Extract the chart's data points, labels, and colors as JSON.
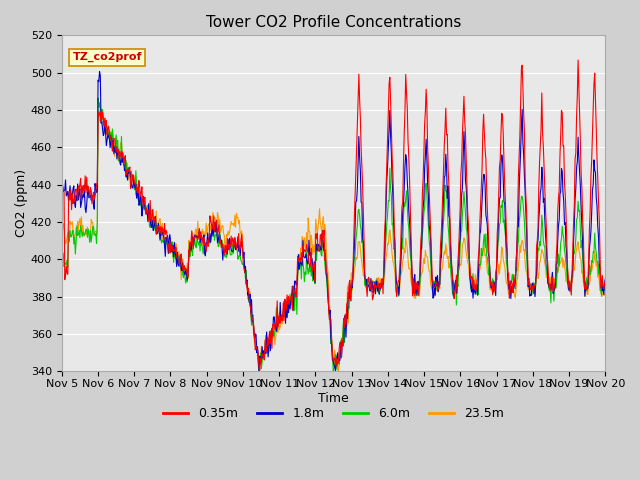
{
  "title": "Tower CO2 Profile Concentrations",
  "xlabel": "Time",
  "ylabel": "CO2 (ppm)",
  "ylim": [
    340,
    520
  ],
  "yticks": [
    340,
    360,
    380,
    400,
    420,
    440,
    460,
    480,
    500,
    520
  ],
  "xlim_days": [
    5,
    20
  ],
  "xtick_labels": [
    "Nov 5",
    "Nov 6",
    "Nov 7",
    "Nov 8",
    "Nov 9",
    "Nov 10",
    "Nov 11",
    "Nov 12",
    "Nov 13",
    "Nov 14",
    "Nov 15",
    "Nov 16",
    "Nov 17",
    "Nov 18",
    "Nov 19",
    "Nov 20"
  ],
  "series_colors": [
    "#ff0000",
    "#0000cc",
    "#00cc00",
    "#ff9900"
  ],
  "series_labels": [
    "0.35m",
    "1.8m",
    "6.0m",
    "23.5m"
  ],
  "legend_label": "TZ_co2prof",
  "fig_bg_color": "#d0d0d0",
  "plot_bg_color": "#e8e8e8",
  "title_fontsize": 11,
  "label_fontsize": 9,
  "tick_fontsize": 8,
  "legend_box_facecolor": "#ffffcc",
  "legend_box_edgecolor": "#cc8800"
}
